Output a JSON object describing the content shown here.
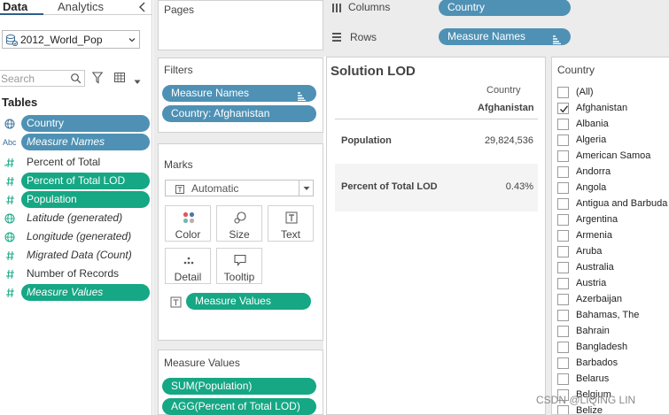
{
  "data_pane": {
    "tabs": [
      "Data",
      "Analytics"
    ],
    "datasource": "2012_World_Pop",
    "search_placeholder": "Search",
    "tables_heading": "Tables",
    "fields": [
      {
        "label": "Country",
        "type": "geo",
        "style": "pill-blue"
      },
      {
        "label": "Measure Names",
        "type": "abc",
        "style": "pill-blue",
        "italic": true
      },
      {
        "label": "Percent of Total",
        "type": "measure",
        "style": "plain"
      },
      {
        "label": "Percent of Total LOD",
        "type": "measure",
        "style": "pill-green"
      },
      {
        "label": "Population",
        "type": "measure",
        "style": "pill-green"
      },
      {
        "label": "Latitude (generated)",
        "type": "geo",
        "style": "plain",
        "italic": true
      },
      {
        "label": "Longitude (generated)",
        "type": "geo",
        "style": "plain",
        "italic": true
      },
      {
        "label": "Migrated Data (Count)",
        "type": "measure",
        "style": "plain",
        "italic": true
      },
      {
        "label": "Number of Records",
        "type": "measure",
        "style": "plain"
      },
      {
        "label": "Measure Values",
        "type": "measure",
        "style": "pill-green",
        "italic": true
      }
    ]
  },
  "shelves": {
    "pages_title": "Pages",
    "columns_label": "Columns",
    "columns_pill": "Country",
    "rows_label": "Rows",
    "rows_pill": "Measure Names"
  },
  "filters": {
    "title": "Filters",
    "pills": [
      "Measure Names",
      "Country: Afghanistan"
    ]
  },
  "marks": {
    "title": "Marks",
    "type": "Automatic",
    "buttons": [
      "Color",
      "Size",
      "Text",
      "Detail",
      "Tooltip"
    ],
    "pill": "Measure Values"
  },
  "measure_values": {
    "title": "Measure Values",
    "pills": [
      "SUM(Population)",
      "AGG(Percent of Total LOD)"
    ]
  },
  "viz": {
    "title": "Solution LOD",
    "column_header": "Country",
    "column_value": "Afghanistan",
    "rows": [
      {
        "label": "Population",
        "value": "29,824,536"
      },
      {
        "label": "Percent of Total LOD",
        "value": "0.43%"
      }
    ]
  },
  "quick_filter": {
    "title": "Country",
    "items": [
      {
        "label": "(All)",
        "checked": false
      },
      {
        "label": "Afghanistan",
        "checked": true
      },
      {
        "label": "Albania",
        "checked": false
      },
      {
        "label": "Algeria",
        "checked": false
      },
      {
        "label": "American Samoa",
        "checked": false
      },
      {
        "label": "Andorra",
        "checked": false
      },
      {
        "label": "Angola",
        "checked": false
      },
      {
        "label": "Antigua and Barbuda",
        "checked": false
      },
      {
        "label": "Argentina",
        "checked": false
      },
      {
        "label": "Armenia",
        "checked": false
      },
      {
        "label": "Aruba",
        "checked": false
      },
      {
        "label": "Australia",
        "checked": false
      },
      {
        "label": "Austria",
        "checked": false
      },
      {
        "label": "Azerbaijan",
        "checked": false
      },
      {
        "label": "Bahamas, The",
        "checked": false
      },
      {
        "label": "Bahrain",
        "checked": false
      },
      {
        "label": "Bangladesh",
        "checked": false
      },
      {
        "label": "Barbados",
        "checked": false
      },
      {
        "label": "Belarus",
        "checked": false
      },
      {
        "label": "Belgium",
        "checked": false
      },
      {
        "label": "Belize",
        "checked": false
      }
    ]
  },
  "watermark": "CSDN @LIQING LIN",
  "colors": {
    "pill_blue": "#4e91b5",
    "pill_green": "#16a784",
    "accent": "#2f5d8a"
  }
}
